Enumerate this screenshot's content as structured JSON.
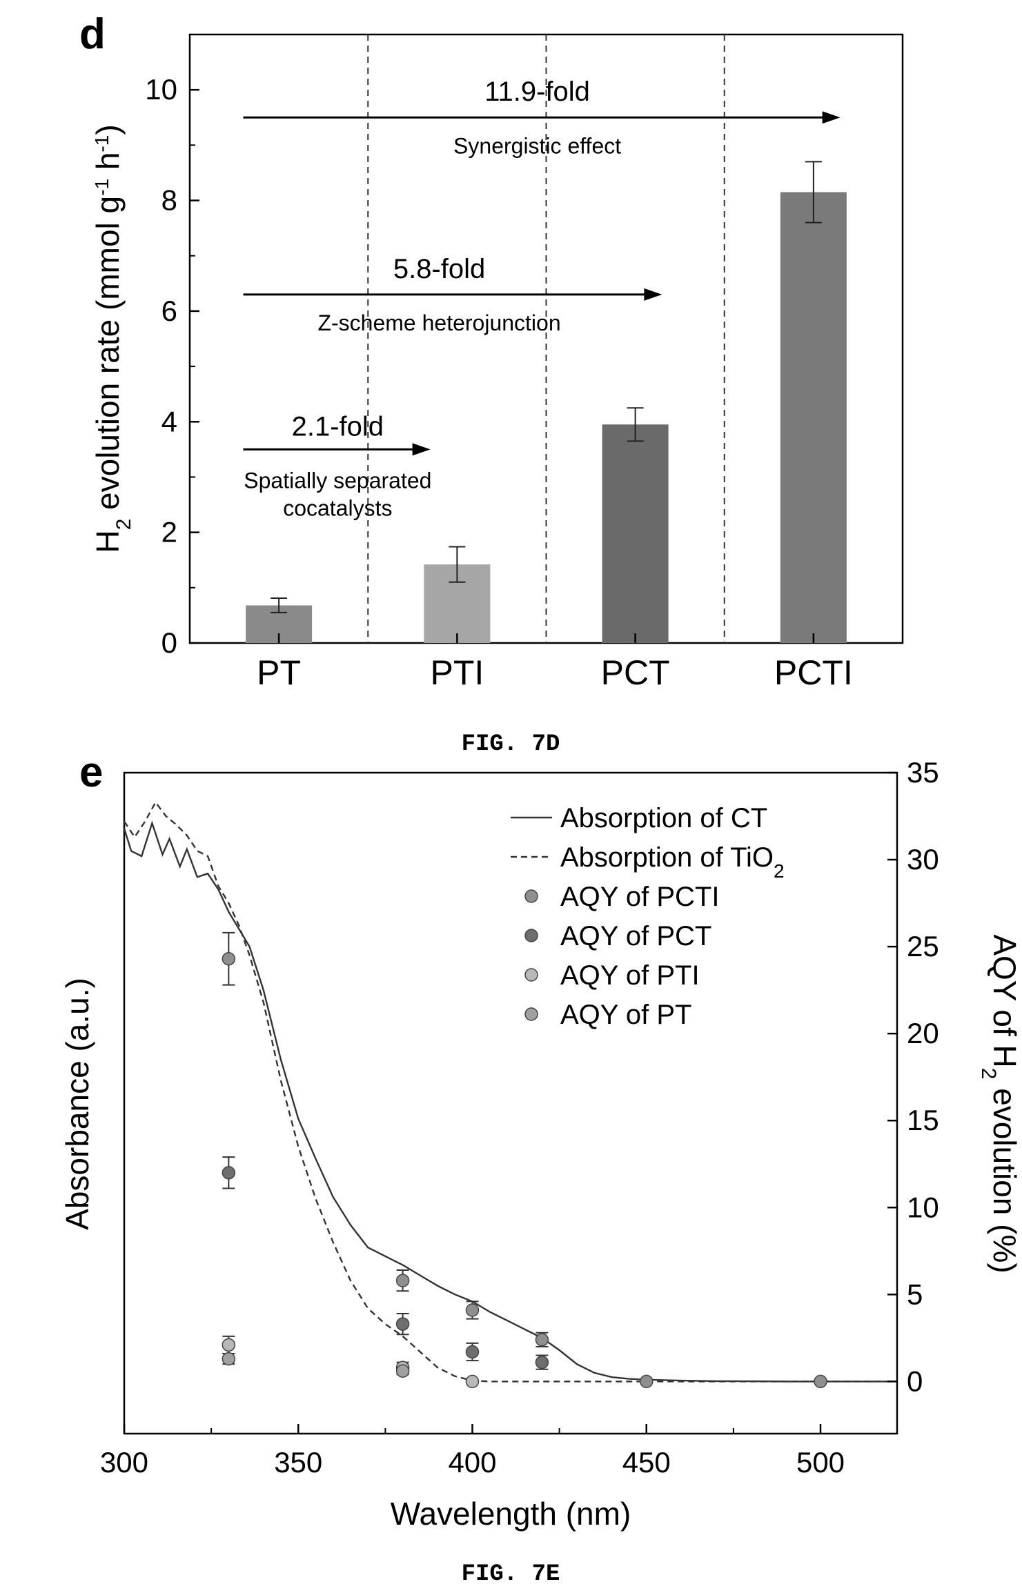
{
  "figure_d": {
    "panel_label": "d",
    "caption": "FIG. 7D"
  },
  "figure_e": {
    "panel_label": "e",
    "caption": "FIG. 7E"
  },
  "chart_data": [
    {
      "type": "bar",
      "panel": "d",
      "categories": [
        "PT",
        "PTI",
        "PCT",
        "PCTI"
      ],
      "values": [
        0.68,
        1.42,
        3.95,
        8.15
      ],
      "errors": [
        0.13,
        0.32,
        0.3,
        0.55
      ],
      "bar_colors": [
        "#8a8a8a",
        "#a6a6a6",
        "#6a6a6a",
        "#7a7a7a"
      ],
      "xlabel": "",
      "ylabel": {
        "main": "H",
        "sub": "2",
        "rest": " evolution rate (mmol g",
        "sup1": "-1",
        "mid": " h",
        "sup2": "-1",
        "end": ")"
      },
      "ylim": [
        0,
        11
      ],
      "yticks": [
        0,
        2,
        4,
        6,
        8,
        10
      ],
      "separators": [
        0.5,
        1.5,
        2.5
      ],
      "annotations": [
        {
          "fold": "2.1-fold",
          "label_lines": [
            "Spatially separated",
            "cocatalysts"
          ],
          "x_start": -0.2,
          "x_end": 0.85,
          "y_arrow": 3.5,
          "fold_x": 0.33,
          "fold_y": 3.75,
          "label_x": 0.33,
          "label_y": 2.8
        },
        {
          "fold": "5.8-fold",
          "label_lines": [
            "Z-scheme heterojunction"
          ],
          "x_start": -0.2,
          "x_end": 2.15,
          "y_arrow": 6.3,
          "fold_x": 0.9,
          "fold_y": 6.6,
          "label_x": 0.9,
          "label_y": 5.65
        },
        {
          "fold": "11.9-fold",
          "label_lines": [
            "Synergistic effect"
          ],
          "x_start": -0.2,
          "x_end": 3.15,
          "y_arrow": 9.5,
          "fold_x": 1.45,
          "fold_y": 9.8,
          "label_x": 1.45,
          "label_y": 8.85
        }
      ]
    },
    {
      "type": "line",
      "panel": "e",
      "xlabel": "Wavelength (nm)",
      "ylabel_left": "Absorbance (a.u.)",
      "ylabel_right": {
        "pre": "AQY of H",
        "sub": "2",
        "post": " evolution (%)"
      },
      "xlim": [
        300,
        522
      ],
      "xticks": [
        300,
        350,
        400,
        450,
        500
      ],
      "ylim_right": [
        -3,
        35
      ],
      "yticks_right": [
        0,
        5,
        10,
        15,
        20,
        25,
        30,
        35
      ],
      "series": [
        {
          "name": "Absorption of CT",
          "style": "solid",
          "x": [
            300,
            302,
            305,
            308,
            311,
            313,
            316,
            318,
            321,
            324,
            327,
            330,
            333,
            336,
            340,
            345,
            350,
            355,
            360,
            365,
            370,
            375,
            380,
            385,
            390,
            395,
            400,
            405,
            410,
            415,
            420,
            425,
            430,
            435,
            440,
            445,
            450,
            460,
            470,
            480,
            490,
            500,
            510,
            522
          ],
          "y": [
            31.8,
            30.5,
            30.2,
            32.1,
            30.3,
            31.2,
            29.6,
            30.6,
            29.0,
            29.2,
            28.3,
            27.0,
            26.0,
            25.0,
            22.5,
            18.5,
            15.1,
            12.8,
            10.6,
            9.0,
            7.7,
            7.2,
            6.7,
            6.1,
            5.5,
            5.0,
            4.6,
            4.0,
            3.5,
            3.0,
            2.5,
            1.8,
            1.0,
            0.5,
            0.25,
            0.15,
            0.1,
            0.05,
            0.02,
            0.01,
            0.0,
            0.0,
            0.0,
            0.0
          ]
        },
        {
          "name": "Absorption of TiO",
          "name_sub": "2",
          "style": "dashed",
          "x": [
            300,
            303,
            306,
            309,
            312,
            315,
            318,
            321,
            324,
            327,
            330,
            333,
            336,
            340,
            345,
            350,
            355,
            360,
            365,
            370,
            375,
            380,
            385,
            390,
            395,
            400,
            405,
            410,
            420,
            430,
            450,
            480,
            522
          ],
          "y": [
            32.2,
            31.3,
            32.2,
            33.3,
            32.5,
            32.0,
            31.4,
            30.5,
            30.2,
            28.5,
            27.5,
            26.2,
            24.5,
            21.8,
            17.3,
            13.5,
            10.5,
            8.0,
            5.8,
            4.2,
            3.3,
            2.6,
            1.7,
            0.8,
            0.3,
            0.05,
            0.0,
            0.0,
            0.0,
            0.0,
            0.0,
            0.0,
            0.0
          ]
        },
        {
          "name": "AQY of PCTI",
          "style": "points",
          "color": "#8f8f8f",
          "x": [
            330,
            380,
            400,
            420,
            450,
            500
          ],
          "y": [
            24.3,
            5.8,
            4.1,
            2.4,
            0.0,
            0.0
          ],
          "err": [
            1.5,
            0.6,
            0.5,
            0.4,
            0.0,
            0.0
          ]
        },
        {
          "name": "AQY of PCT",
          "style": "points",
          "color": "#6e6e6e",
          "x": [
            330,
            380,
            400,
            420
          ],
          "y": [
            12.0,
            3.3,
            1.7,
            1.1
          ],
          "err": [
            0.9,
            0.6,
            0.5,
            0.4
          ]
        },
        {
          "name": "AQY of PTI",
          "style": "points",
          "color": "#b8b8b8",
          "x": [
            330,
            380,
            400
          ],
          "y": [
            2.1,
            0.8,
            0.0
          ],
          "err": [
            0.5,
            0.3,
            0.0
          ]
        },
        {
          "name": "AQY of PT",
          "style": "points",
          "color": "#a0a0a0",
          "x": [
            330,
            380
          ],
          "y": [
            1.3,
            0.6
          ],
          "err": [
            0.3,
            0.2
          ]
        }
      ]
    }
  ]
}
